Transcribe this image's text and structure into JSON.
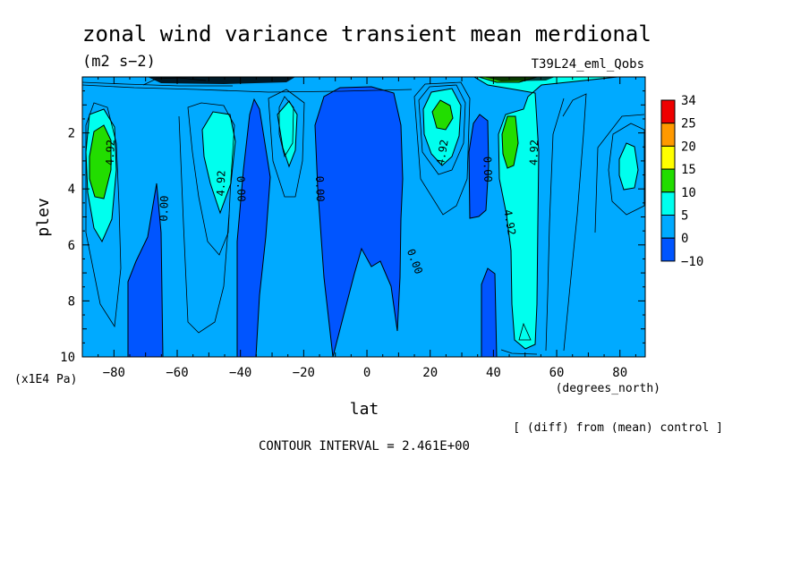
{
  "chart_data": {
    "type": "heatmap",
    "title": "zonal wind variance transient mean merdional",
    "units": "(m2 s−2)",
    "run_label": "T39L24_eml_Qobs",
    "xlabel": "lat",
    "xunits": "(degrees_north)",
    "ylabel": "plev",
    "yunits": "(x1E4 Pa)",
    "xlim": [
      -90,
      88
    ],
    "ylim": [
      0,
      10
    ],
    "y_inverted": true,
    "x_ticks": [
      -80,
      -60,
      -40,
      -20,
      0,
      20,
      40,
      60,
      80
    ],
    "y_ticks": [
      2,
      4,
      6,
      8,
      10
    ],
    "note": "[ (diff) from (mean) control ]",
    "contour_interval_text": "CONTOUR INTERVAL = 2.461E+00",
    "legend": {
      "labels": [
        "34",
        "25",
        "20",
        "15",
        "10",
        "5",
        "0",
        "−10"
      ],
      "colors": [
        "#ee0000",
        "#ff9900",
        "#ffff00",
        "#22dd00",
        "#00ffee",
        "#00aaff",
        "#0055ff"
      ]
    },
    "contour_labels": [
      {
        "text": "4.92",
        "lat": -81,
        "plev": 2.7,
        "angle": -88
      },
      {
        "text": "0.00",
        "lat": -64,
        "plev": 4.7,
        "angle": -88
      },
      {
        "text": "4.92",
        "lat": -46,
        "plev": 3.8,
        "angle": -88
      },
      {
        "text": "0.00",
        "lat": -40,
        "plev": 4.0,
        "angle": 88
      },
      {
        "text": "0.00",
        "lat": -15,
        "plev": 4.0,
        "angle": 88
      },
      {
        "text": "0.00",
        "lat": 15,
        "plev": 6.6,
        "angle": 70
      },
      {
        "text": "4.92",
        "lat": 24,
        "plev": 2.7,
        "angle": -80
      },
      {
        "text": "0.00",
        "lat": 38,
        "plev": 3.3,
        "angle": 88
      },
      {
        "text": "4.92",
        "lat": 45,
        "plev": 5.2,
        "angle": 80
      },
      {
        "text": "4.92",
        "lat": 53,
        "plev": 2.7,
        "angle": -88
      }
    ]
  }
}
